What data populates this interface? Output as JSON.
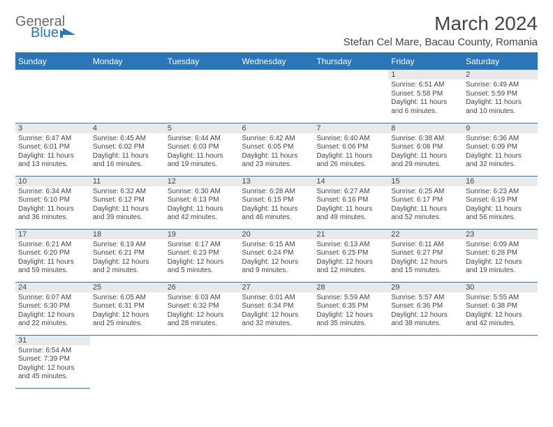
{
  "colors": {
    "header_bg": "#2a76b8",
    "header_text": "#ffffff",
    "daynum_bg": "#e9e9e9",
    "text": "#444444",
    "rule": "#2a76b8",
    "logo_gray": "#6b6b6b",
    "logo_blue": "#2a76b8"
  },
  "logo": {
    "word1": "General",
    "word2": "Blue"
  },
  "title": "March 2024",
  "location": "Stefan Cel Mare, Bacau County, Romania",
  "weekdays": [
    "Sunday",
    "Monday",
    "Tuesday",
    "Wednesday",
    "Thursday",
    "Friday",
    "Saturday"
  ],
  "weeks": [
    [
      null,
      null,
      null,
      null,
      null,
      {
        "num": "1",
        "sunrise": "Sunrise: 6:51 AM",
        "sunset": "Sunset: 5:58 PM",
        "day1": "Daylight: 11 hours",
        "day2": "and 6 minutes."
      },
      {
        "num": "2",
        "sunrise": "Sunrise: 6:49 AM",
        "sunset": "Sunset: 5:59 PM",
        "day1": "Daylight: 11 hours",
        "day2": "and 10 minutes."
      }
    ],
    [
      {
        "num": "3",
        "sunrise": "Sunrise: 6:47 AM",
        "sunset": "Sunset: 6:01 PM",
        "day1": "Daylight: 11 hours",
        "day2": "and 13 minutes."
      },
      {
        "num": "4",
        "sunrise": "Sunrise: 6:45 AM",
        "sunset": "Sunset: 6:02 PM",
        "day1": "Daylight: 11 hours",
        "day2": "and 16 minutes."
      },
      {
        "num": "5",
        "sunrise": "Sunrise: 6:44 AM",
        "sunset": "Sunset: 6:03 PM",
        "day1": "Daylight: 11 hours",
        "day2": "and 19 minutes."
      },
      {
        "num": "6",
        "sunrise": "Sunrise: 6:42 AM",
        "sunset": "Sunset: 6:05 PM",
        "day1": "Daylight: 11 hours",
        "day2": "and 23 minutes."
      },
      {
        "num": "7",
        "sunrise": "Sunrise: 6:40 AM",
        "sunset": "Sunset: 6:06 PM",
        "day1": "Daylight: 11 hours",
        "day2": "and 26 minutes."
      },
      {
        "num": "8",
        "sunrise": "Sunrise: 6:38 AM",
        "sunset": "Sunset: 6:08 PM",
        "day1": "Daylight: 11 hours",
        "day2": "and 29 minutes."
      },
      {
        "num": "9",
        "sunrise": "Sunrise: 6:36 AM",
        "sunset": "Sunset: 6:09 PM",
        "day1": "Daylight: 11 hours",
        "day2": "and 32 minutes."
      }
    ],
    [
      {
        "num": "10",
        "sunrise": "Sunrise: 6:34 AM",
        "sunset": "Sunset: 6:10 PM",
        "day1": "Daylight: 11 hours",
        "day2": "and 36 minutes."
      },
      {
        "num": "11",
        "sunrise": "Sunrise: 6:32 AM",
        "sunset": "Sunset: 6:12 PM",
        "day1": "Daylight: 11 hours",
        "day2": "and 39 minutes."
      },
      {
        "num": "12",
        "sunrise": "Sunrise: 6:30 AM",
        "sunset": "Sunset: 6:13 PM",
        "day1": "Daylight: 11 hours",
        "day2": "and 42 minutes."
      },
      {
        "num": "13",
        "sunrise": "Sunrise: 6:28 AM",
        "sunset": "Sunset: 6:15 PM",
        "day1": "Daylight: 11 hours",
        "day2": "and 46 minutes."
      },
      {
        "num": "14",
        "sunrise": "Sunrise: 6:27 AM",
        "sunset": "Sunset: 6:16 PM",
        "day1": "Daylight: 11 hours",
        "day2": "and 49 minutes."
      },
      {
        "num": "15",
        "sunrise": "Sunrise: 6:25 AM",
        "sunset": "Sunset: 6:17 PM",
        "day1": "Daylight: 11 hours",
        "day2": "and 52 minutes."
      },
      {
        "num": "16",
        "sunrise": "Sunrise: 6:23 AM",
        "sunset": "Sunset: 6:19 PM",
        "day1": "Daylight: 11 hours",
        "day2": "and 56 minutes."
      }
    ],
    [
      {
        "num": "17",
        "sunrise": "Sunrise: 6:21 AM",
        "sunset": "Sunset: 6:20 PM",
        "day1": "Daylight: 11 hours",
        "day2": "and 59 minutes."
      },
      {
        "num": "18",
        "sunrise": "Sunrise: 6:19 AM",
        "sunset": "Sunset: 6:21 PM",
        "day1": "Daylight: 12 hours",
        "day2": "and 2 minutes."
      },
      {
        "num": "19",
        "sunrise": "Sunrise: 6:17 AM",
        "sunset": "Sunset: 6:23 PM",
        "day1": "Daylight: 12 hours",
        "day2": "and 5 minutes."
      },
      {
        "num": "20",
        "sunrise": "Sunrise: 6:15 AM",
        "sunset": "Sunset: 6:24 PM",
        "day1": "Daylight: 12 hours",
        "day2": "and 9 minutes."
      },
      {
        "num": "21",
        "sunrise": "Sunrise: 6:13 AM",
        "sunset": "Sunset: 6:25 PM",
        "day1": "Daylight: 12 hours",
        "day2": "and 12 minutes."
      },
      {
        "num": "22",
        "sunrise": "Sunrise: 6:11 AM",
        "sunset": "Sunset: 6:27 PM",
        "day1": "Daylight: 12 hours",
        "day2": "and 15 minutes."
      },
      {
        "num": "23",
        "sunrise": "Sunrise: 6:09 AM",
        "sunset": "Sunset: 6:28 PM",
        "day1": "Daylight: 12 hours",
        "day2": "and 19 minutes."
      }
    ],
    [
      {
        "num": "24",
        "sunrise": "Sunrise: 6:07 AM",
        "sunset": "Sunset: 6:30 PM",
        "day1": "Daylight: 12 hours",
        "day2": "and 22 minutes."
      },
      {
        "num": "25",
        "sunrise": "Sunrise: 6:05 AM",
        "sunset": "Sunset: 6:31 PM",
        "day1": "Daylight: 12 hours",
        "day2": "and 25 minutes."
      },
      {
        "num": "26",
        "sunrise": "Sunrise: 6:03 AM",
        "sunset": "Sunset: 6:32 PM",
        "day1": "Daylight: 12 hours",
        "day2": "and 28 minutes."
      },
      {
        "num": "27",
        "sunrise": "Sunrise: 6:01 AM",
        "sunset": "Sunset: 6:34 PM",
        "day1": "Daylight: 12 hours",
        "day2": "and 32 minutes."
      },
      {
        "num": "28",
        "sunrise": "Sunrise: 5:59 AM",
        "sunset": "Sunset: 6:35 PM",
        "day1": "Daylight: 12 hours",
        "day2": "and 35 minutes."
      },
      {
        "num": "29",
        "sunrise": "Sunrise: 5:57 AM",
        "sunset": "Sunset: 6:36 PM",
        "day1": "Daylight: 12 hours",
        "day2": "and 38 minutes."
      },
      {
        "num": "30",
        "sunrise": "Sunrise: 5:55 AM",
        "sunset": "Sunset: 6:38 PM",
        "day1": "Daylight: 12 hours",
        "day2": "and 42 minutes."
      }
    ],
    [
      {
        "num": "31",
        "sunrise": "Sunrise: 6:54 AM",
        "sunset": "Sunset: 7:39 PM",
        "day1": "Daylight: 12 hours",
        "day2": "and 45 minutes."
      },
      null,
      null,
      null,
      null,
      null,
      null
    ]
  ]
}
